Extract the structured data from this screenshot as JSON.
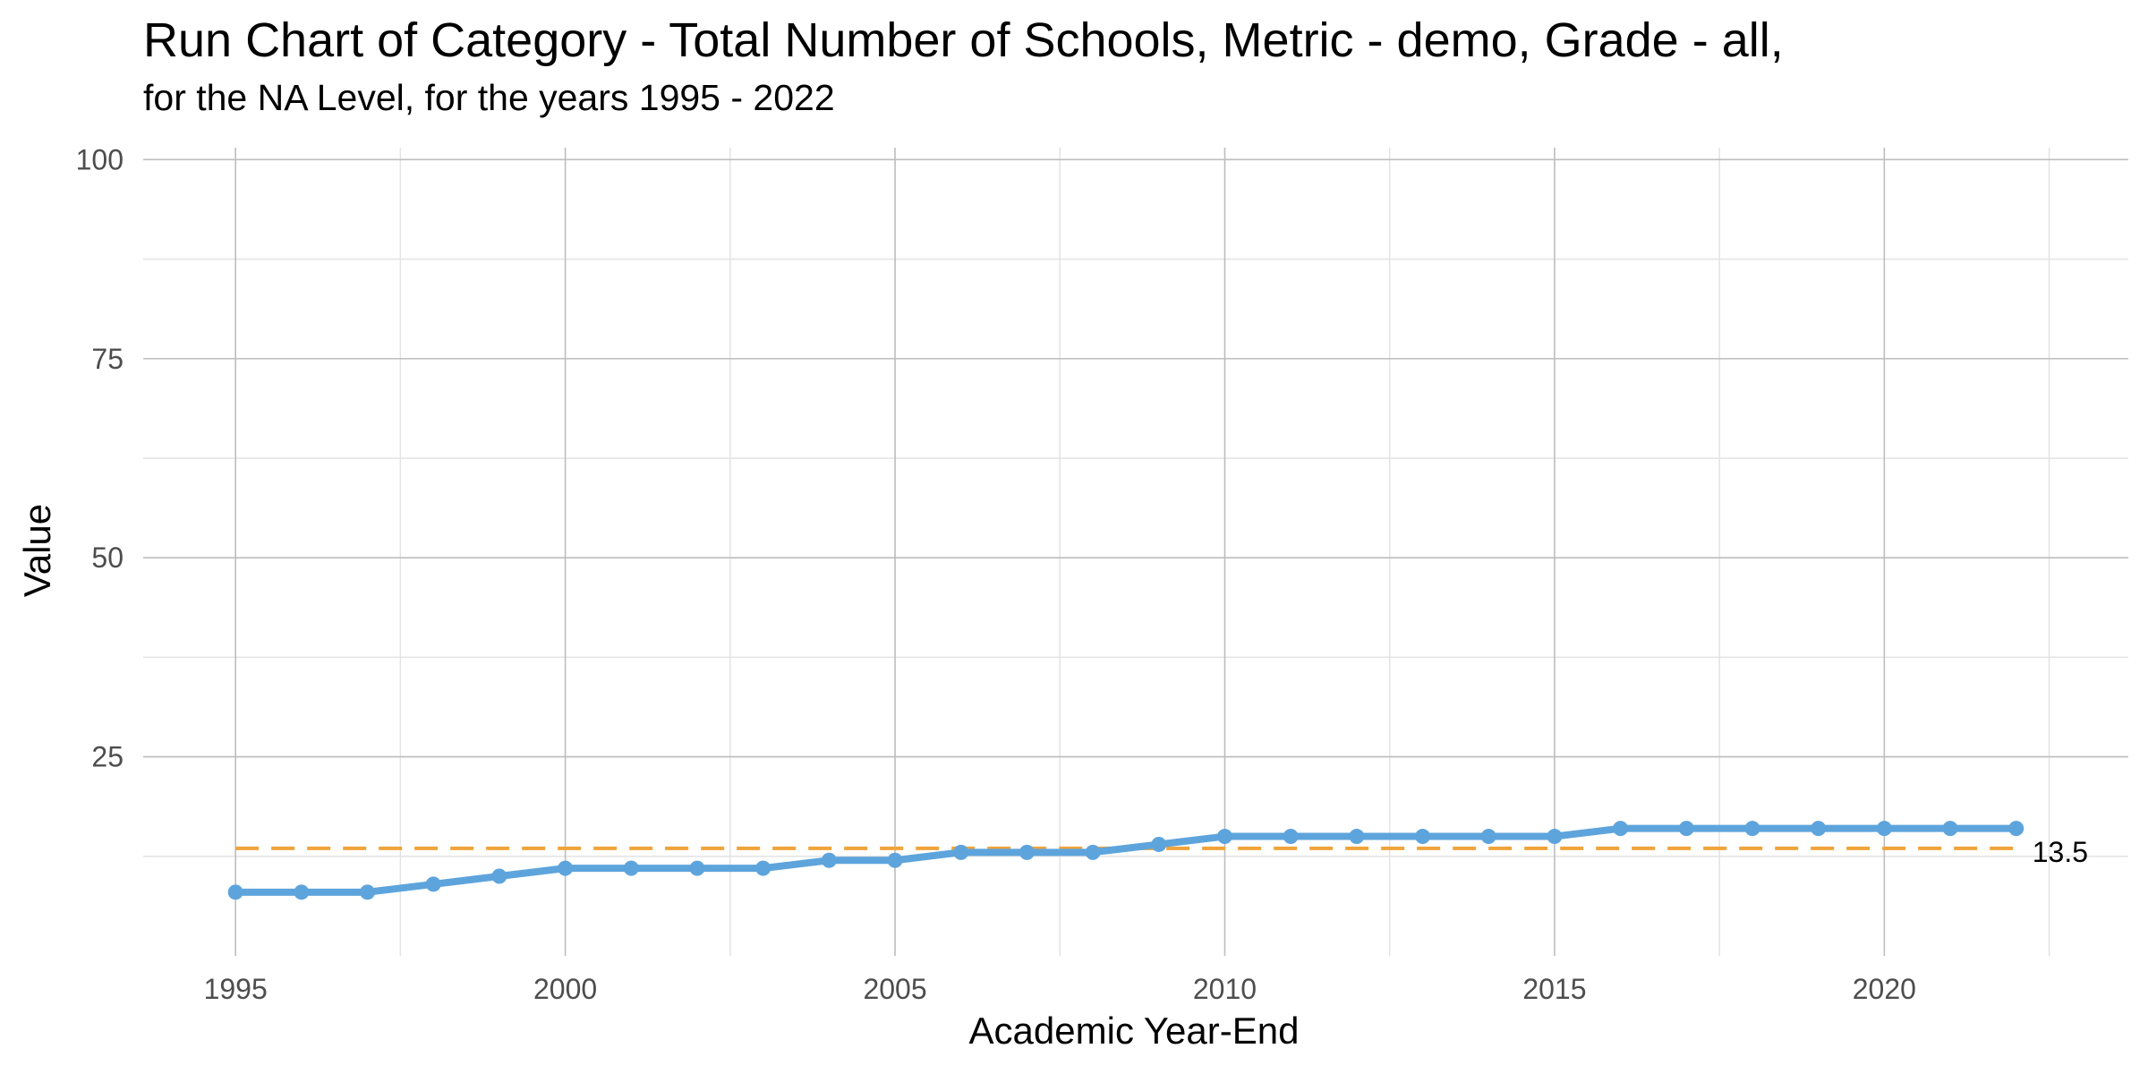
{
  "chart_data": {
    "type": "line",
    "title": "Run Chart of Category - Total Number of Schools, Metric - demo, Grade - all,",
    "subtitle": "for the NA Level, for the years 1995 - 2022",
    "xlabel": "Academic Year-End",
    "ylabel": "Value",
    "xlim": [
      1993.6,
      2023.7
    ],
    "ylim": [
      0,
      101.5
    ],
    "x_ticks": [
      1995,
      2000,
      2005,
      2010,
      2015,
      2020
    ],
    "y_ticks": [
      25,
      50,
      75,
      100
    ],
    "grid": true,
    "legend": "none",
    "colors": {
      "series": "#5ea4dc",
      "reference": "#f0a43a",
      "grid_major": "#bdbdbd",
      "grid_minor": "#e3e3e3"
    },
    "series": [
      {
        "x": [
          1995,
          1996,
          1997,
          1998,
          1999,
          2000,
          2001,
          2002,
          2003,
          2004,
          2005,
          2006,
          2007,
          2008,
          2009,
          2010,
          2011,
          2012,
          2013,
          2014,
          2015,
          2016,
          2017,
          2018,
          2019,
          2020,
          2021,
          2022
        ],
        "y": [
          8,
          8,
          8,
          9,
          10,
          11,
          11,
          11,
          11,
          12,
          12,
          13,
          13,
          13,
          14,
          15,
          15,
          15,
          15,
          15,
          15,
          16,
          16,
          16,
          16,
          16,
          16,
          16
        ]
      }
    ],
    "reference_line": {
      "value": 13.5,
      "label": "13.5",
      "style": "dashed"
    }
  }
}
